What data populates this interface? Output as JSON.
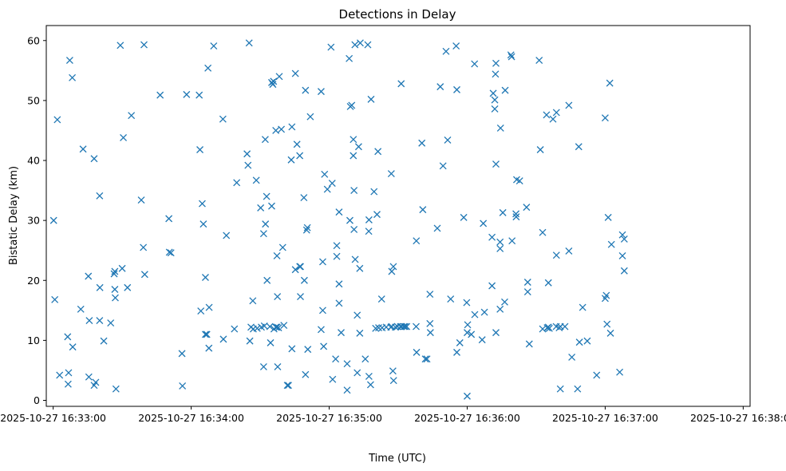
{
  "chart_data": {
    "type": "scatter",
    "title": "Detections in Delay",
    "xlabel": "Time (UTC)",
    "ylabel": "Bistatic Delay (km)",
    "x_tick_labels": [
      "2025-10-27 16:33:00",
      "2025-10-27 16:34:00",
      "2025-10-27 16:35:00",
      "2025-10-27 16:36:00",
      "2025-10-27 16:37:00",
      "2025-10-27 16:38:00"
    ],
    "x_ticks_seconds": [
      0,
      60,
      120,
      180,
      240,
      300
    ],
    "y_ticks": [
      0,
      10,
      20,
      30,
      40,
      50,
      60
    ],
    "xlim_seconds": [
      -3,
      303
    ],
    "ylim": [
      -1,
      62.5
    ],
    "grid": false,
    "marker": "x",
    "color": "#1f77b4",
    "x_unit": "seconds after 2025-10-27 16:33:00 UTC",
    "points": [
      [
        0.2,
        30
      ],
      [
        0.7,
        16.8
      ],
      [
        1.8,
        46.8
      ],
      [
        2.8,
        4.2
      ],
      [
        6.3,
        10.6
      ],
      [
        6.5,
        2.7
      ],
      [
        6.7,
        4.6
      ],
      [
        7.2,
        56.7
      ],
      [
        8.3,
        53.8
      ],
      [
        8.5,
        8.9
      ],
      [
        12,
        15.2
      ],
      [
        13,
        41.9
      ],
      [
        15.3,
        20.7
      ],
      [
        15.5,
        3.9
      ],
      [
        15.7,
        13.3
      ],
      [
        17.8,
        40.3
      ],
      [
        17.8,
        2.5
      ],
      [
        18.5,
        3
      ],
      [
        20.2,
        34.1
      ],
      [
        20.2,
        13.3
      ],
      [
        20.3,
        18.8
      ],
      [
        22,
        9.9
      ],
      [
        25,
        12.9
      ],
      [
        26.5,
        21.1
      ],
      [
        26.8,
        21.5
      ],
      [
        26.8,
        18.5
      ],
      [
        27,
        17.1
      ],
      [
        27.3,
        1.9
      ],
      [
        29.2,
        59.2
      ],
      [
        30,
        22
      ],
      [
        30.5,
        43.8
      ],
      [
        32.3,
        18.8
      ],
      [
        34,
        47.5
      ],
      [
        38.3,
        33.4
      ],
      [
        39.2,
        25.5
      ],
      [
        39.5,
        59.3
      ],
      [
        39.8,
        21
      ],
      [
        46.5,
        50.9
      ],
      [
        50.3,
        30.3
      ],
      [
        50.5,
        24.7
      ],
      [
        51.2,
        24.6
      ],
      [
        56,
        7.8
      ],
      [
        56.2,
        2.4
      ],
      [
        58,
        51
      ],
      [
        63.5,
        50.9
      ],
      [
        63.8,
        41.8
      ],
      [
        64.2,
        14.9
      ],
      [
        64.8,
        32.8
      ],
      [
        65.3,
        29.4
      ],
      [
        66.2,
        20.5
      ],
      [
        66.2,
        11
      ],
      [
        66.8,
        11
      ],
      [
        67.3,
        55.4
      ],
      [
        67.7,
        8.7
      ],
      [
        67.8,
        15.5
      ],
      [
        69.8,
        59.1
      ],
      [
        73.8,
        46.9
      ],
      [
        74,
        10.2
      ],
      [
        75.3,
        27.5
      ],
      [
        78.8,
        11.9
      ],
      [
        79.8,
        36.3
      ],
      [
        84.3,
        41.1
      ],
      [
        84.7,
        39.2
      ],
      [
        85.2,
        59.6
      ],
      [
        85.5,
        9.9
      ],
      [
        86,
        12.2
      ],
      [
        86.8,
        16.6
      ],
      [
        87,
        11.9
      ],
      [
        88.3,
        36.7
      ],
      [
        88.7,
        12
      ],
      [
        90.2,
        32.1
      ],
      [
        90.5,
        12.2
      ],
      [
        91.5,
        27.8
      ],
      [
        91.5,
        5.6
      ],
      [
        91.8,
        12.4
      ],
      [
        92.2,
        43.5
      ],
      [
        92.3,
        29.4
      ],
      [
        92.8,
        34
      ],
      [
        93,
        20
      ],
      [
        94.2,
        12.3
      ],
      [
        94.5,
        9.6
      ],
      [
        95,
        53
      ],
      [
        95,
        32.4
      ],
      [
        95.5,
        52.7
      ],
      [
        95.8,
        53.2
      ],
      [
        96,
        11.9
      ],
      [
        96.8,
        45
      ],
      [
        96.8,
        12.2
      ],
      [
        97.3,
        24.1
      ],
      [
        97.3,
        12.2
      ],
      [
        97.5,
        17.3
      ],
      [
        97.6,
        5.6
      ],
      [
        98,
        12.1
      ],
      [
        98.3,
        54
      ],
      [
        99.2,
        45.2
      ],
      [
        99.8,
        25.5
      ],
      [
        100.3,
        12.5
      ],
      [
        101.8,
        2.5
      ],
      [
        102.3,
        2.5
      ],
      [
        103.5,
        40.1
      ],
      [
        103.8,
        45.6
      ],
      [
        103.8,
        8.6
      ],
      [
        105.3,
        54.5
      ],
      [
        105.3,
        21.8
      ],
      [
        106,
        42.7
      ],
      [
        107.2,
        40.8
      ],
      [
        107.2,
        22.3
      ],
      [
        107.5,
        22.3
      ],
      [
        107.5,
        17.3
      ],
      [
        109,
        33.8
      ],
      [
        109.2,
        20
      ],
      [
        109.7,
        51.7
      ],
      [
        109.7,
        4.3
      ],
      [
        110.2,
        28.4
      ],
      [
        110.5,
        28.8
      ],
      [
        110.7,
        8.5
      ],
      [
        111.8,
        47.3
      ],
      [
        116.5,
        51.5
      ],
      [
        116.5,
        11.8
      ],
      [
        117.2,
        23.1
      ],
      [
        117.2,
        15
      ],
      [
        117.6,
        9
      ],
      [
        118,
        37.7
      ],
      [
        119.2,
        35.2
      ],
      [
        120.8,
        58.9
      ],
      [
        121.3,
        36.2
      ],
      [
        121.5,
        3.5
      ],
      [
        122.8,
        6.9
      ],
      [
        123.3,
        25.8
      ],
      [
        123.3,
        24
      ],
      [
        124.3,
        31.4
      ],
      [
        124.3,
        19.4
      ],
      [
        124.3,
        16.2
      ],
      [
        125.2,
        11.3
      ],
      [
        127.8,
        1.7
      ],
      [
        127.8,
        6.1
      ],
      [
        128.7,
        57
      ],
      [
        129,
        30
      ],
      [
        129.2,
        49
      ],
      [
        129.8,
        49.2
      ],
      [
        130.5,
        43.5
      ],
      [
        130.5,
        40.8
      ],
      [
        130.8,
        35
      ],
      [
        130.8,
        28.5
      ],
      [
        131.2,
        59.3
      ],
      [
        131.3,
        23.5
      ],
      [
        132.2,
        4.6
      ],
      [
        132.2,
        14.2
      ],
      [
        132.8,
        42.3
      ],
      [
        133.3,
        22
      ],
      [
        133.3,
        11.2
      ],
      [
        133.5,
        59.6
      ],
      [
        135.7,
        6.9
      ],
      [
        136.8,
        59.3
      ],
      [
        137.3,
        30.1
      ],
      [
        137.2,
        28.2
      ],
      [
        137.3,
        4
      ],
      [
        138,
        2.6
      ],
      [
        138.2,
        50.2
      ],
      [
        139.5,
        34.8
      ],
      [
        140.2,
        12
      ],
      [
        140.8,
        31
      ],
      [
        141.2,
        41.5
      ],
      [
        141.5,
        12.1
      ],
      [
        142.8,
        16.9
      ],
      [
        143,
        12.1
      ],
      [
        144.8,
        12.2
      ],
      [
        146.8,
        12.2
      ],
      [
        147,
        37.8
      ],
      [
        147.2,
        21.5
      ],
      [
        147.2,
        12.3
      ],
      [
        147.7,
        4.9
      ],
      [
        147.9,
        22.3
      ],
      [
        148,
        3.3
      ],
      [
        148.8,
        12.2
      ],
      [
        149.7,
        12.3
      ],
      [
        151,
        12.3
      ],
      [
        151.3,
        52.8
      ],
      [
        151.5,
        12.3
      ],
      [
        152.5,
        12.3
      ],
      [
        153,
        12.3
      ],
      [
        153.7,
        12.3
      ],
      [
        157.8,
        12.3
      ],
      [
        157.9,
        26.6
      ],
      [
        158,
        8
      ],
      [
        160.3,
        42.9
      ],
      [
        160.7,
        31.8
      ],
      [
        161.8,
        6.9
      ],
      [
        162.5,
        6.9
      ],
      [
        163.8,
        17.7
      ],
      [
        163.8,
        12.8
      ],
      [
        164,
        11.3
      ],
      [
        167,
        28.7
      ],
      [
        168.3,
        52.3
      ],
      [
        169.5,
        39.1
      ],
      [
        170.8,
        58.2
      ],
      [
        171.5,
        43.4
      ],
      [
        172.8,
        16.9
      ],
      [
        175.2,
        59.1
      ],
      [
        175.5,
        51.8
      ],
      [
        175.5,
        8
      ],
      [
        176.8,
        9.6
      ],
      [
        178.5,
        30.5
      ],
      [
        179.8,
        16.3
      ],
      [
        180.2,
        12.6
      ],
      [
        180,
        11.3
      ],
      [
        180,
        0.7
      ],
      [
        181.8,
        11
      ],
      [
        183.2,
        56.1
      ],
      [
        183.3,
        14.3
      ],
      [
        186.5,
        10.1
      ],
      [
        187,
        29.5
      ],
      [
        187.5,
        14.7
      ],
      [
        190.8,
        27.2
      ],
      [
        190.8,
        19.1
      ],
      [
        191.3,
        51.2
      ],
      [
        192,
        50.1
      ],
      [
        192,
        48.6
      ],
      [
        192.3,
        54.4
      ],
      [
        192.5,
        56.2
      ],
      [
        192.5,
        39.4
      ],
      [
        192.5,
        11.3
      ],
      [
        194.3,
        26.4
      ],
      [
        194.3,
        25.3
      ],
      [
        194.3,
        15.2
      ],
      [
        194.5,
        45.4
      ],
      [
        195.5,
        31.3
      ],
      [
        196.3,
        16.4
      ],
      [
        196.5,
        51.7
      ],
      [
        199,
        57.6
      ],
      [
        199.3,
        57.3
      ],
      [
        199.5,
        26.6
      ],
      [
        201.2,
        31.1
      ],
      [
        201.3,
        30.6
      ],
      [
        201.5,
        36.8
      ],
      [
        202.8,
        36.6
      ],
      [
        205.8,
        32.2
      ],
      [
        206.3,
        19.7
      ],
      [
        206.3,
        18.1
      ],
      [
        207,
        9.4
      ],
      [
        211.3,
        56.7
      ],
      [
        211.8,
        41.8
      ],
      [
        212.8,
        28
      ],
      [
        212.8,
        11.9
      ],
      [
        214.5,
        47.6
      ],
      [
        214.8,
        12.1
      ],
      [
        215.3,
        12.2
      ],
      [
        215.3,
        19.6
      ],
      [
        215.7,
        12
      ],
      [
        217.3,
        46.9
      ],
      [
        218.8,
        48
      ],
      [
        218.8,
        24.2
      ],
      [
        218.7,
        12.3
      ],
      [
        220,
        12.1
      ],
      [
        220.5,
        1.9
      ],
      [
        220.5,
        12.3
      ],
      [
        222.5,
        12.3
      ],
      [
        224.2,
        24.9
      ],
      [
        224.2,
        49.2
      ],
      [
        225.5,
        7.2
      ],
      [
        228,
        1.9
      ],
      [
        228.5,
        42.3
      ],
      [
        228.8,
        9.7
      ],
      [
        230.2,
        15.5
      ],
      [
        232.2,
        9.9
      ],
      [
        236.3,
        4.2
      ],
      [
        240,
        17
      ],
      [
        240,
        47.1
      ],
      [
        240.5,
        17.5
      ],
      [
        240.8,
        12.7
      ],
      [
        241.3,
        30.5
      ],
      [
        242,
        52.9
      ],
      [
        242.3,
        11.2
      ],
      [
        242.7,
        26
      ],
      [
        246.3,
        4.7
      ],
      [
        247.5,
        27.6
      ],
      [
        247.5,
        24.1
      ],
      [
        248.3,
        26.9
      ],
      [
        248.3,
        21.6
      ]
    ]
  }
}
